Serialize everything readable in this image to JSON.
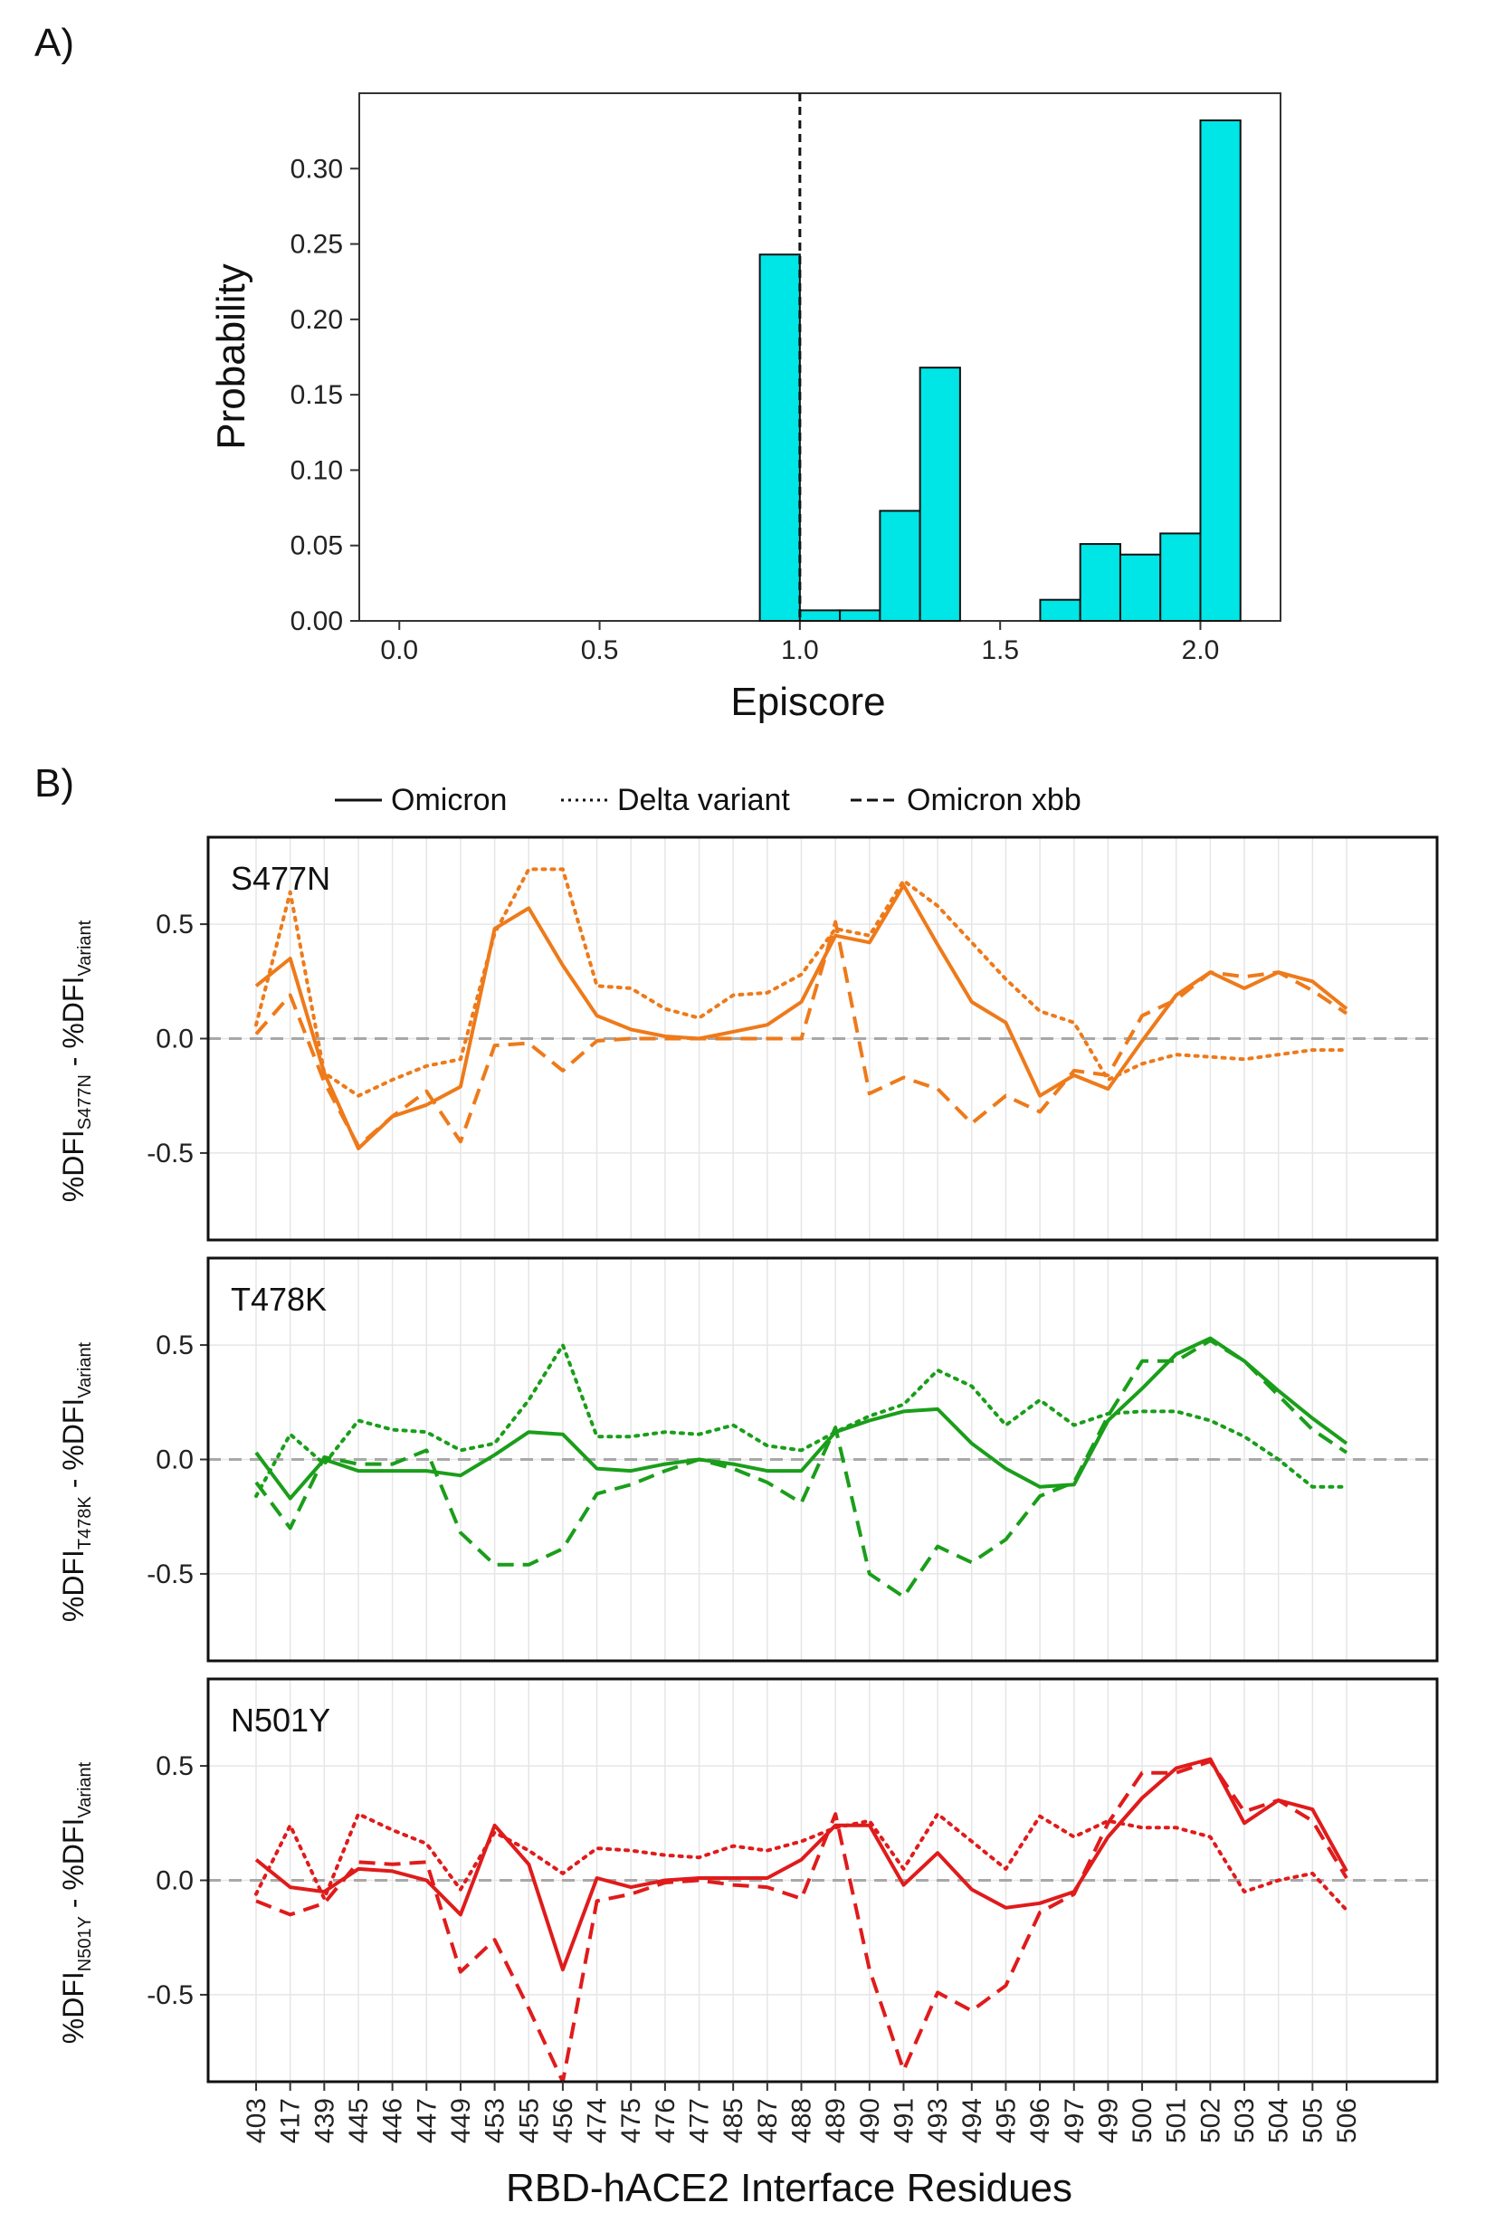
{
  "panel_a_label": "A)",
  "panel_b_label": "B)",
  "chart_data": [
    {
      "type": "bar",
      "panel": "A",
      "xlabel": "Episcore",
      "ylabel": "Probability",
      "xlim": [
        -0.1,
        2.2
      ],
      "ylim": [
        0,
        0.35
      ],
      "xticks": [
        0.0,
        0.5,
        1.0,
        1.5,
        2.0
      ],
      "xtick_labels": [
        "0.0",
        "0.5",
        "1.0",
        "1.5",
        "2.0"
      ],
      "yticks": [
        0.0,
        0.05,
        0.1,
        0.15,
        0.2,
        0.25,
        0.3
      ],
      "ytick_labels": [
        "0.00",
        "0.05",
        "0.10",
        "0.15",
        "0.20",
        "0.25",
        "0.30"
      ],
      "bin_width": 0.1,
      "bins": [
        {
          "x": 0.95,
          "value": 0.243
        },
        {
          "x": 1.05,
          "value": 0.007
        },
        {
          "x": 1.15,
          "value": 0.007
        },
        {
          "x": 1.25,
          "value": 0.073
        },
        {
          "x": 1.35,
          "value": 0.168
        },
        {
          "x": 1.65,
          "value": 0.014
        },
        {
          "x": 1.75,
          "value": 0.051
        },
        {
          "x": 1.85,
          "value": 0.044
        },
        {
          "x": 1.95,
          "value": 0.058
        },
        {
          "x": 2.05,
          "value": 0.332
        }
      ],
      "vline_x": 1.0,
      "bar_color": "#00e5e5"
    },
    {
      "type": "line",
      "panel": "B",
      "xlabel": "RBD-hACE2 Interface Residues",
      "categories": [
        "403",
        "417",
        "439",
        "445",
        "446",
        "447",
        "449",
        "453",
        "455",
        "456",
        "474",
        "475",
        "476",
        "477",
        "485",
        "487",
        "488",
        "489",
        "490",
        "491",
        "493",
        "494",
        "495",
        "496",
        "497",
        "499",
        "500",
        "501",
        "502",
        "503",
        "504",
        "505",
        "506"
      ],
      "legend": [
        {
          "name": "Omicron",
          "style": "solid"
        },
        {
          "name": "Delta variant",
          "style": "dotted"
        },
        {
          "name": "Omicron xbb",
          "style": "dashed"
        }
      ],
      "ylim": [
        -0.88,
        0.88
      ],
      "yticks": [
        -0.5,
        0.0,
        0.5
      ],
      "ytick_labels": [
        "-0.5",
        "0.0",
        "0.5"
      ],
      "facets": [
        {
          "title": "S477N",
          "color": "#ee7a1a",
          "ylabel_main": "%DFI",
          "ylabel_sub1": "S477N",
          "ylabel_mid": " - %DFI",
          "ylabel_sub2": "Variant",
          "series": [
            {
              "name": "Omicron",
              "values": [
                0.23,
                0.35,
                -0.15,
                -0.48,
                -0.34,
                -0.29,
                -0.21,
                0.48,
                0.57,
                0.32,
                0.1,
                0.04,
                0.01,
                0.0,
                0.03,
                0.06,
                0.16,
                0.45,
                0.42,
                0.67,
                0.41,
                0.16,
                0.07,
                -0.25,
                -0.16,
                -0.22,
                -0.01,
                0.19,
                0.29,
                0.22,
                0.29,
                0.25,
                0.13
              ]
            },
            {
              "name": "Delta variant",
              "values": [
                0.06,
                0.64,
                -0.15,
                -0.25,
                -0.18,
                -0.12,
                -0.09,
                0.46,
                0.74,
                0.74,
                0.23,
                0.22,
                0.13,
                0.09,
                0.19,
                0.2,
                0.28,
                0.48,
                0.45,
                0.69,
                0.58,
                0.42,
                0.26,
                0.12,
                0.07,
                -0.18,
                -0.11,
                -0.07,
                -0.08,
                -0.09,
                -0.07,
                -0.05,
                -0.05
              ]
            },
            {
              "name": "Omicron xbb",
              "values": [
                0.02,
                0.19,
                -0.19,
                -0.47,
                -0.34,
                -0.23,
                -0.45,
                -0.03,
                -0.02,
                -0.14,
                -0.01,
                0.0,
                0.0,
                0.0,
                0.0,
                0.0,
                0.0,
                0.51,
                -0.24,
                -0.17,
                -0.22,
                -0.37,
                -0.25,
                -0.32,
                -0.14,
                -0.16,
                0.1,
                0.17,
                0.29,
                0.27,
                0.29,
                0.21,
                0.11
              ]
            }
          ]
        },
        {
          "title": "T478K",
          "color": "#1a9e1a",
          "ylabel_main": "%DFI",
          "ylabel_sub1": "T478K",
          "ylabel_mid": " - %DFI",
          "ylabel_sub2": "Variant",
          "series": [
            {
              "name": "Omicron",
              "values": [
                0.03,
                -0.17,
                0.0,
                -0.05,
                -0.05,
                -0.05,
                -0.07,
                0.02,
                0.12,
                0.11,
                -0.04,
                -0.05,
                -0.02,
                0.0,
                -0.02,
                -0.05,
                -0.05,
                0.12,
                0.17,
                0.21,
                0.22,
                0.07,
                -0.04,
                -0.12,
                -0.11,
                0.17,
                0.31,
                0.46,
                0.53,
                0.43,
                0.3,
                0.18,
                0.07
              ]
            },
            {
              "name": "Delta variant",
              "values": [
                -0.16,
                0.11,
                -0.02,
                0.17,
                0.13,
                0.12,
                0.04,
                0.07,
                0.26,
                0.5,
                0.1,
                0.1,
                0.12,
                0.11,
                0.15,
                0.06,
                0.04,
                0.12,
                0.19,
                0.24,
                0.39,
                0.32,
                0.15,
                0.26,
                0.15,
                0.2,
                0.21,
                0.21,
                0.17,
                0.1,
                0.0,
                -0.12,
                -0.12
              ]
            },
            {
              "name": "Omicron xbb",
              "values": [
                -0.1,
                -0.3,
                0.01,
                -0.02,
                -0.02,
                0.04,
                -0.32,
                -0.46,
                -0.46,
                -0.39,
                -0.15,
                -0.11,
                -0.05,
                0.0,
                -0.04,
                -0.1,
                -0.19,
                0.14,
                -0.5,
                -0.6,
                -0.38,
                -0.45,
                -0.35,
                -0.16,
                -0.1,
                0.19,
                0.43,
                0.43,
                0.52,
                0.43,
                0.28,
                0.13,
                0.03
              ]
            }
          ]
        },
        {
          "title": "N501Y",
          "color": "#e01b1b",
          "ylabel_main": "%DFI",
          "ylabel_sub1": "N501Y",
          "ylabel_mid": " - %DFI",
          "ylabel_sub2": "Variant",
          "series": [
            {
              "name": "Omicron",
              "values": [
                0.09,
                -0.03,
                -0.05,
                0.05,
                0.04,
                0.0,
                -0.15,
                0.24,
                0.07,
                -0.39,
                0.01,
                -0.03,
                0.0,
                0.01,
                0.01,
                0.01,
                0.09,
                0.24,
                0.24,
                -0.02,
                0.12,
                -0.04,
                -0.12,
                -0.1,
                -0.05,
                0.19,
                0.36,
                0.49,
                0.53,
                0.25,
                0.35,
                0.31,
                0.04
              ]
            },
            {
              "name": "Delta variant",
              "values": [
                -0.06,
                0.24,
                -0.08,
                0.29,
                0.22,
                0.16,
                -0.04,
                0.21,
                0.13,
                0.03,
                0.14,
                0.13,
                0.11,
                0.1,
                0.15,
                0.13,
                0.17,
                0.23,
                0.26,
                0.05,
                0.29,
                0.17,
                0.05,
                0.28,
                0.19,
                0.26,
                0.23,
                0.23,
                0.19,
                -0.05,
                0.0,
                0.03,
                -0.13
              ]
            },
            {
              "name": "Omicron xbb",
              "values": [
                -0.09,
                -0.15,
                -0.1,
                0.08,
                0.07,
                0.08,
                -0.4,
                -0.26,
                -0.56,
                -0.88,
                -0.09,
                -0.06,
                -0.01,
                0.0,
                -0.02,
                -0.03,
                -0.08,
                0.29,
                -0.39,
                -0.83,
                -0.49,
                -0.57,
                -0.46,
                -0.14,
                -0.06,
                0.25,
                0.47,
                0.47,
                0.52,
                0.3,
                0.35,
                0.26,
                0.01
              ]
            }
          ]
        }
      ]
    }
  ]
}
